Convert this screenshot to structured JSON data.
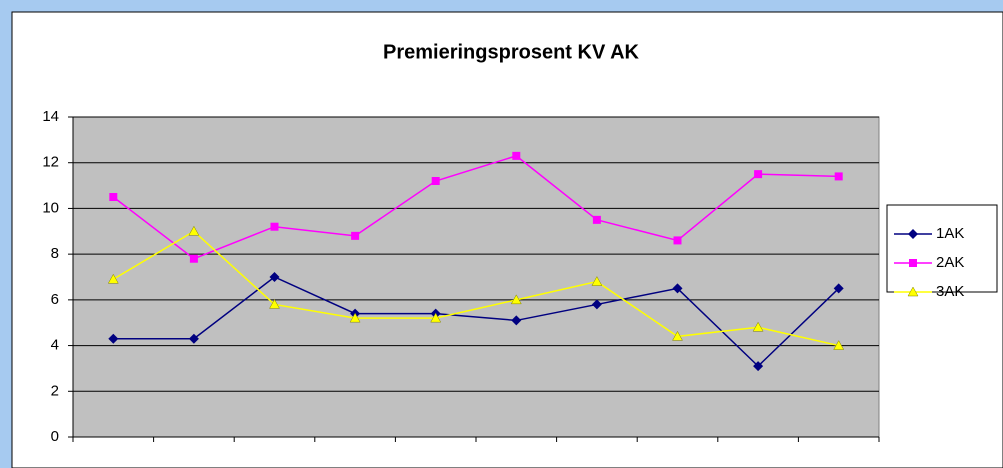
{
  "chart_data": {
    "type": "line",
    "title": "Premieringsprosent KV AK",
    "categories": [
      null,
      null,
      null,
      null,
      null,
      null,
      null,
      null,
      null,
      null
    ],
    "series": [
      {
        "name": "1AK",
        "color": "#000080",
        "marker": "diamond",
        "values": [
          4.3,
          4.3,
          7.0,
          5.4,
          5.4,
          5.1,
          5.8,
          6.5,
          3.1,
          6.5
        ]
      },
      {
        "name": "2AK",
        "color": "#ff00ff",
        "marker": "square",
        "values": [
          10.5,
          7.8,
          9.2,
          8.8,
          11.2,
          12.3,
          9.5,
          8.6,
          11.5,
          11.4
        ]
      },
      {
        "name": "3AK",
        "color": "#ffff00",
        "marker": "triangle",
        "values": [
          6.9,
          9.0,
          5.8,
          5.2,
          5.2,
          6.0,
          6.8,
          4.4,
          4.8,
          4.0
        ]
      }
    ],
    "ylim": [
      0,
      14
    ],
    "yticks": [
      0,
      2,
      4,
      6,
      8,
      10,
      12,
      14
    ],
    "grid": true,
    "legend": "right"
  }
}
